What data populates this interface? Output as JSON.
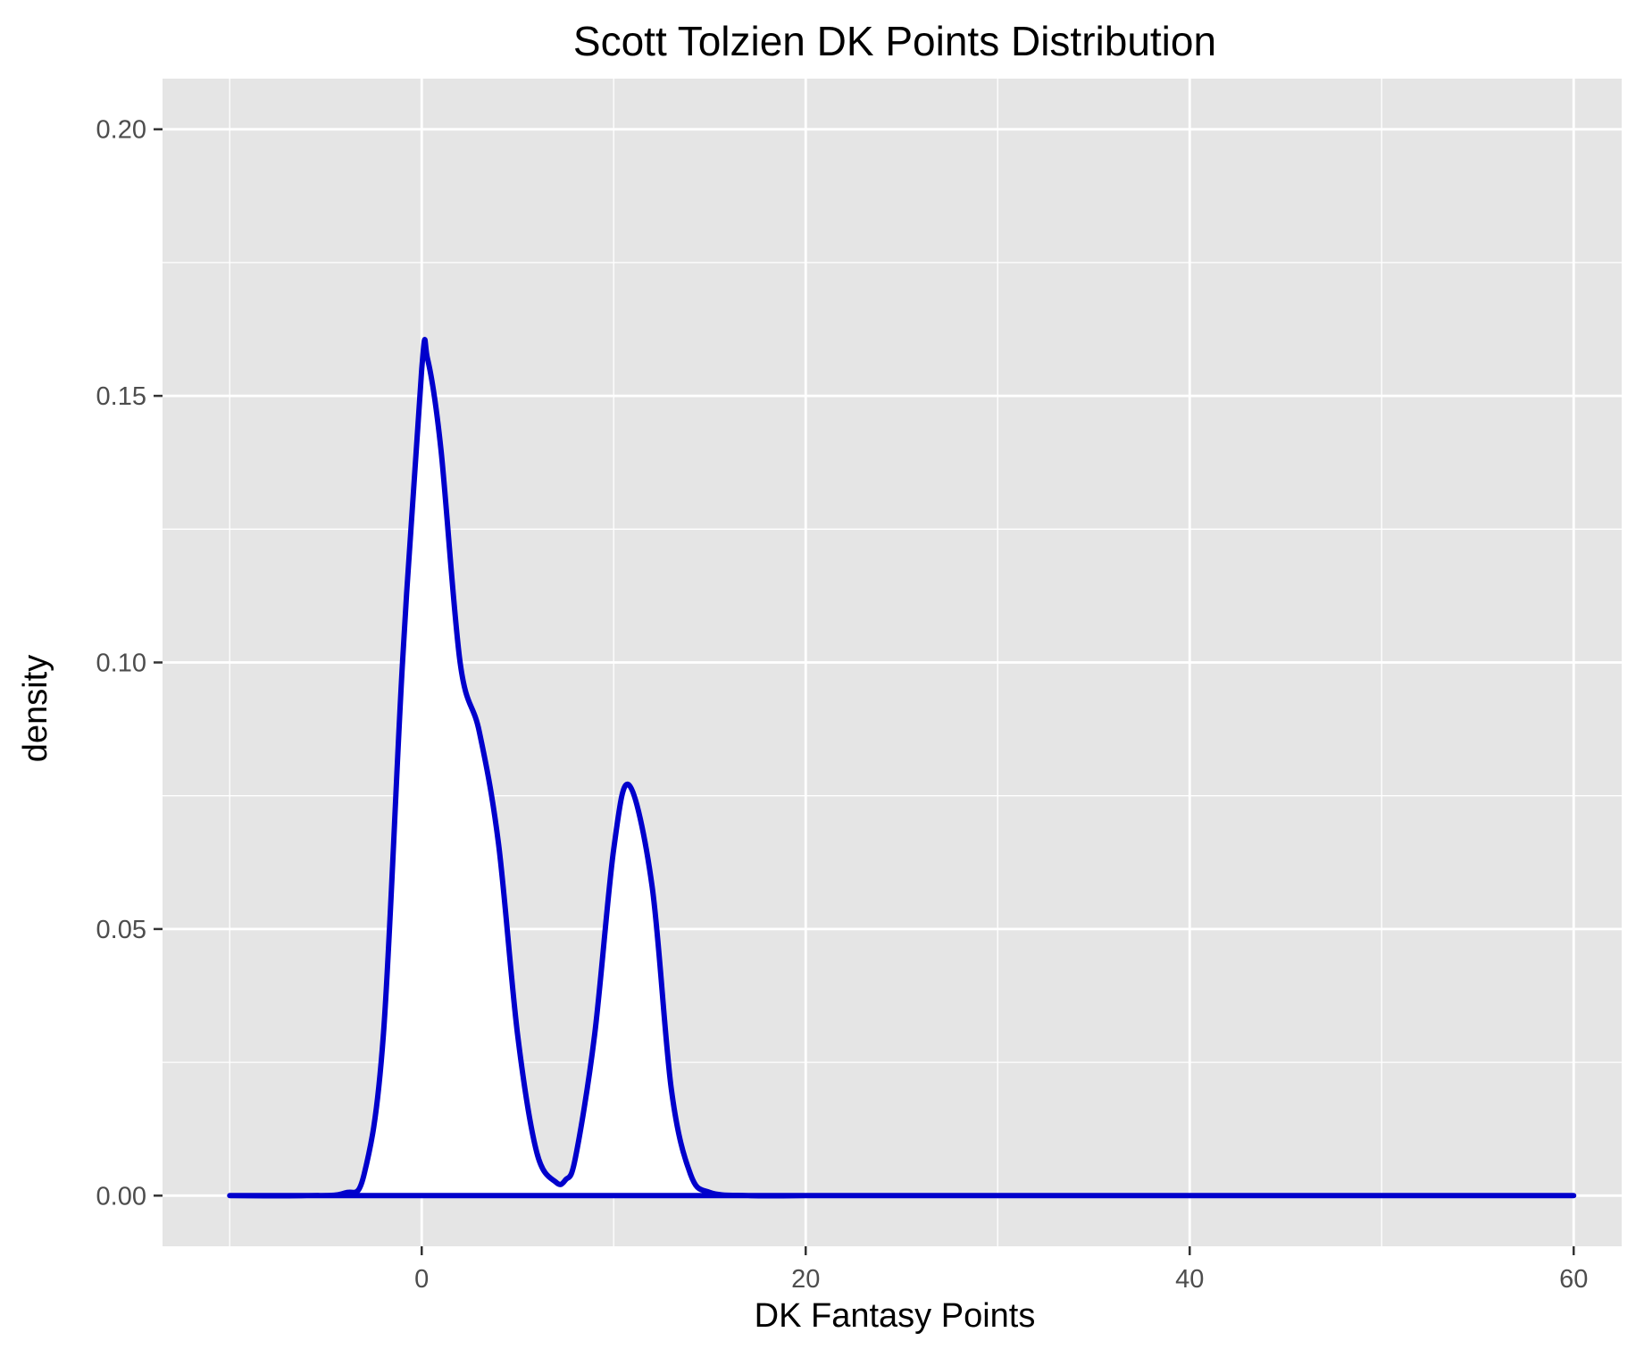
{
  "chart_data": {
    "type": "area",
    "title": "Scott Tolzien DK Points Distribution",
    "xlabel": "DK Fantasy Points",
    "ylabel": "density",
    "xlim": [
      -13.5,
      62.5
    ],
    "ylim": [
      -0.0095,
      0.2095
    ],
    "x_ticks": [
      0,
      20,
      40,
      60
    ],
    "x_tick_labels": [
      "0",
      "20",
      "40",
      "60"
    ],
    "y_ticks": [
      0.0,
      0.05,
      0.1,
      0.15,
      0.2
    ],
    "y_tick_labels": [
      "0.00",
      "0.05",
      "0.10",
      "0.15",
      "0.20"
    ],
    "grid": true,
    "colors": {
      "panel_background": "#e5e5e5",
      "grid": "#ffffff",
      "line": "#0000cc",
      "fill": "#ffffff"
    },
    "series": [
      {
        "x": [
          -10,
          -6,
          -4,
          -3,
          -2,
          -1,
          0,
          0.3,
          1,
          2,
          3,
          4,
          5,
          6,
          7,
          7.5,
          8,
          9,
          10,
          10.8,
          12,
          13,
          14,
          15,
          17,
          20,
          30,
          40,
          50,
          60
        ],
        "y": [
          0.0,
          0.0,
          0.0005,
          0.004,
          0.03,
          0.1,
          0.155,
          0.157,
          0.14,
          0.1,
          0.087,
          0.066,
          0.03,
          0.008,
          0.0025,
          0.003,
          0.007,
          0.03,
          0.065,
          0.077,
          0.058,
          0.02,
          0.004,
          0.0006,
          0.0,
          0.0,
          0.0,
          0.0,
          0.0,
          0.0
        ]
      }
    ]
  }
}
